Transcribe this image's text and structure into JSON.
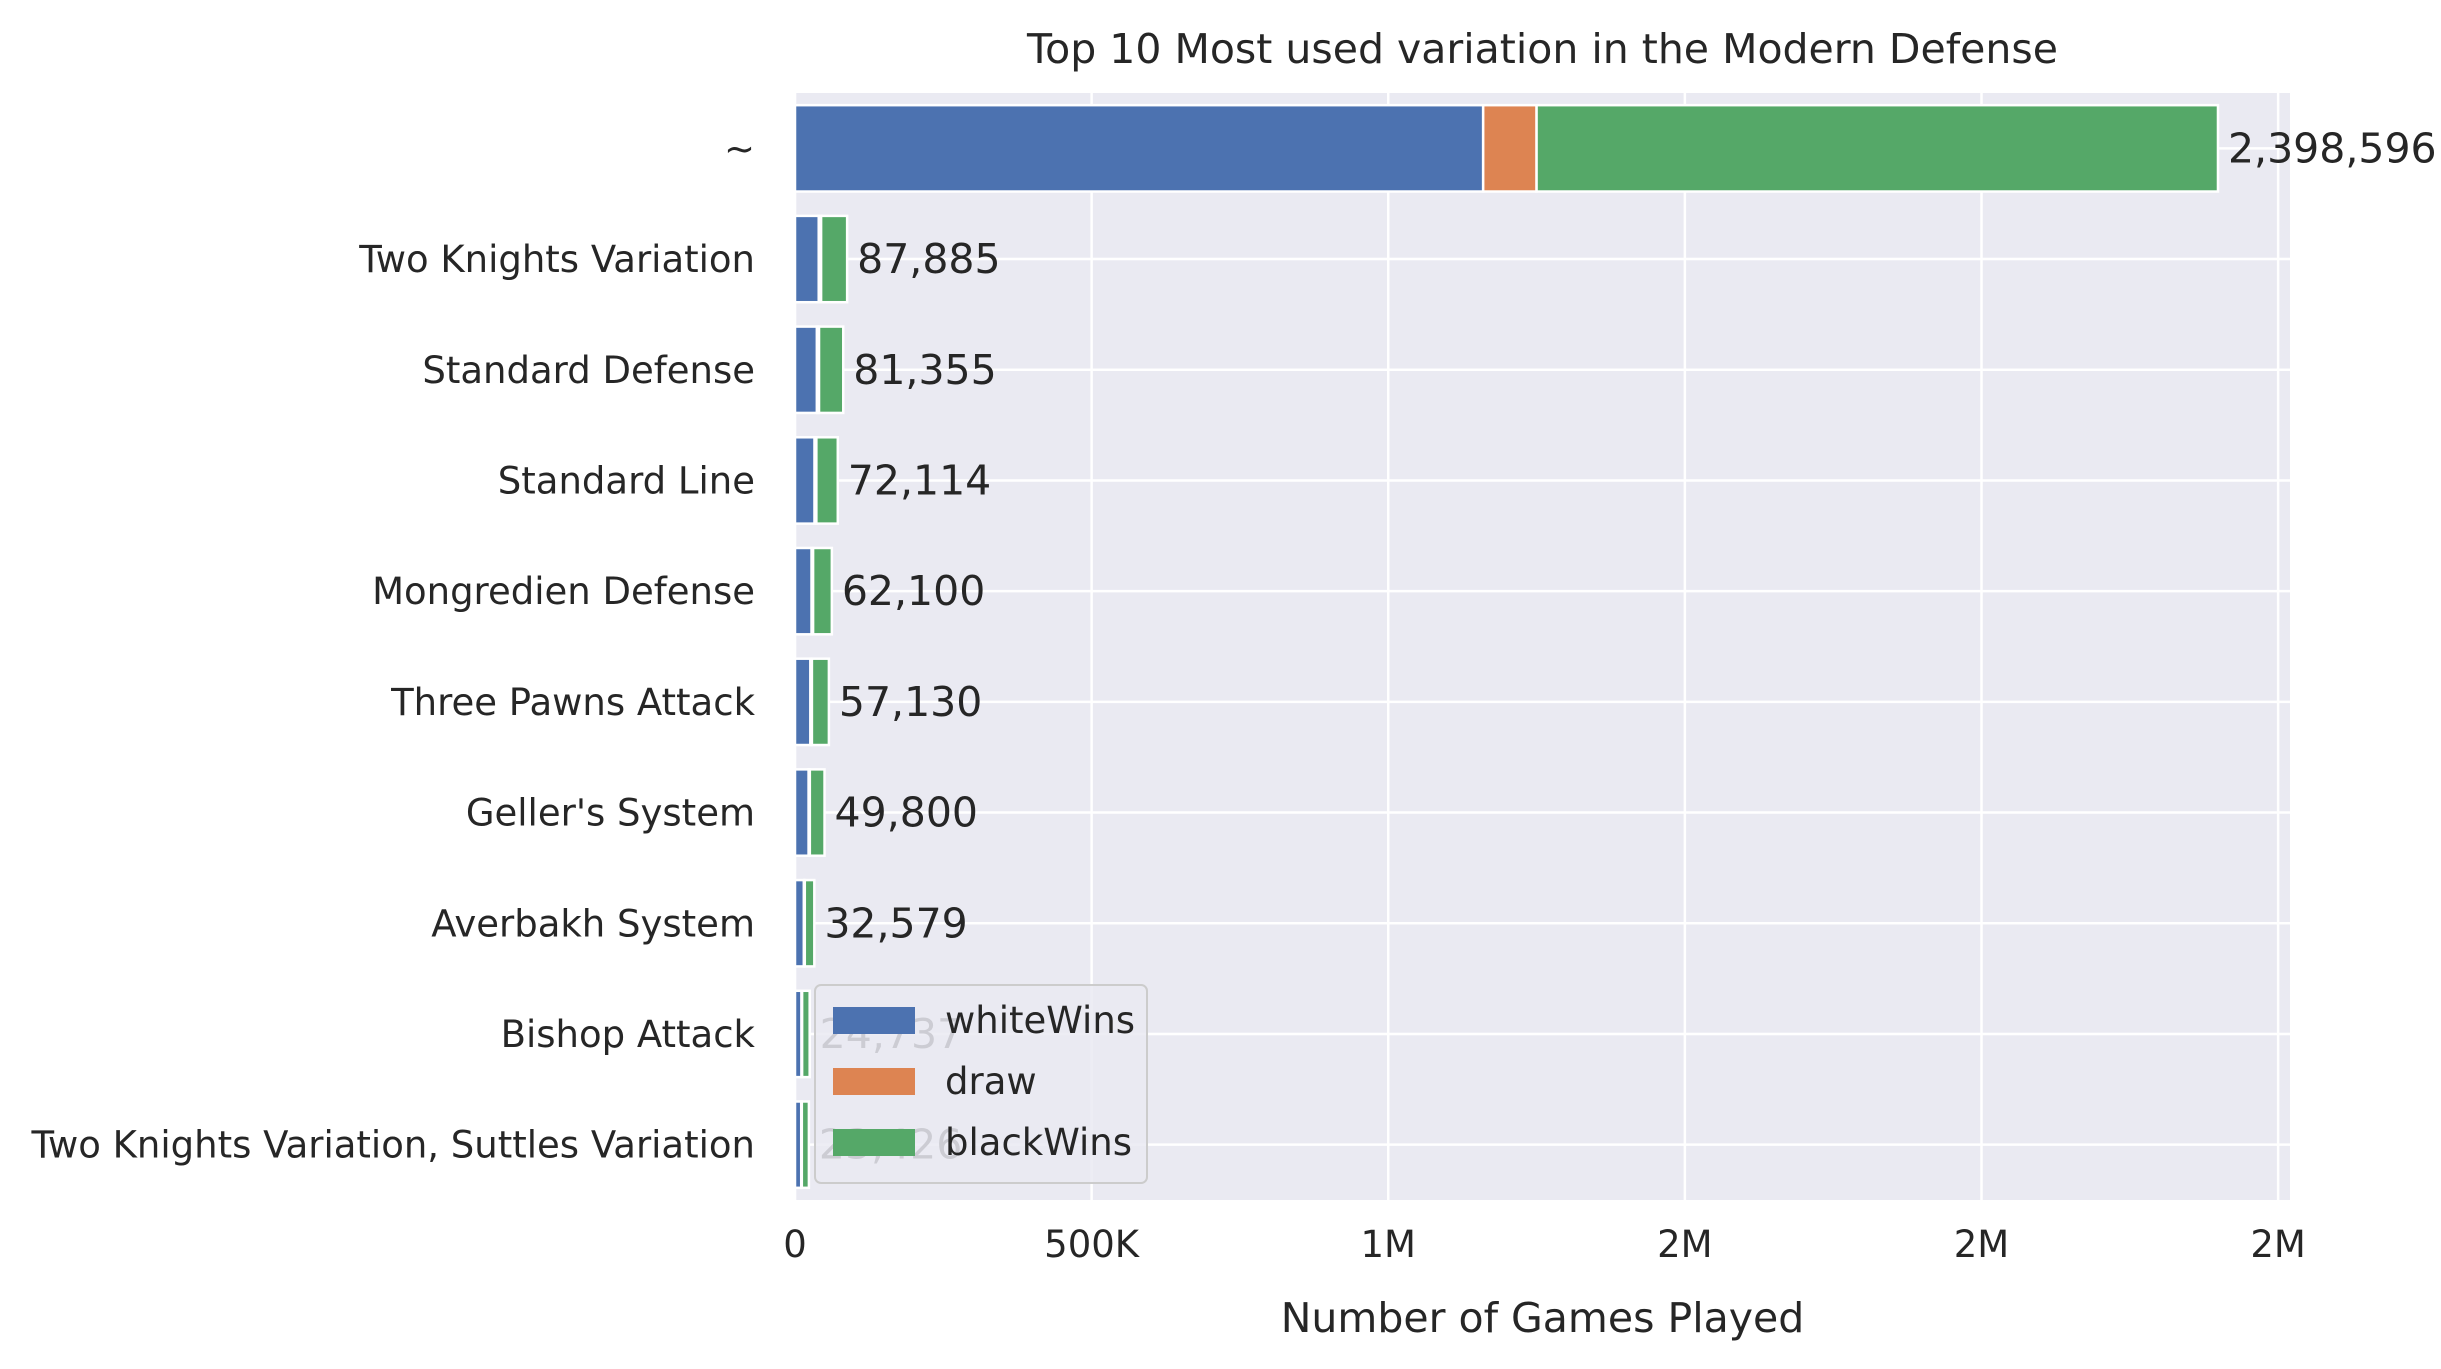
{
  "chart_data": {
    "type": "bar",
    "orientation": "horizontal",
    "stacked": true,
    "title": "Top 10 Most used variation in the Modern Defense",
    "xlabel": "Number of Games Played",
    "ylabel": "",
    "xlim": [
      0,
      2520000
    ],
    "x_ticks": [
      {
        "value": 0,
        "label": "0"
      },
      {
        "value": 500000,
        "label": "500K"
      },
      {
        "value": 1000000,
        "label": "1M"
      },
      {
        "value": 1500000,
        "label": "2M"
      },
      {
        "value": 2000000,
        "label": "2M"
      },
      {
        "value": 2500000,
        "label": "2M"
      }
    ],
    "grid": true,
    "legend_position": "lower-left",
    "categories": [
      "~",
      "Two Knights Variation",
      "Standard Defense",
      "Standard Line",
      "Mongredien Defense",
      "Three Pawns Attack",
      "Geller's System",
      "Averbakh System",
      "Bishop Attack",
      "Two Knights Variation, Suttles Variation"
    ],
    "series": [
      {
        "name": "whiteWins",
        "color": "#4c72b0",
        "values": [
          1160000,
          40000,
          37000,
          33000,
          28000,
          26000,
          23000,
          15000,
          11000,
          10500
        ]
      },
      {
        "name": "draw",
        "color": "#dd8452",
        "values": [
          90000,
          4000,
          3500,
          3000,
          2500,
          2500,
          2000,
          1500,
          1000,
          1000
        ]
      },
      {
        "name": "blackWins",
        "color": "#55a868",
        "values": [
          1148596,
          43885,
          40855,
          36114,
          31600,
          28630,
          24800,
          16079,
          12737,
          11926
        ]
      }
    ],
    "totals": [
      2398596,
      87885,
      81355,
      72114,
      62100,
      57130,
      49800,
      32579,
      24737,
      23426
    ],
    "total_labels": [
      "2,398,596",
      "87,885",
      "81,355",
      "72,114",
      "62,100",
      "57,130",
      "49,800",
      "32,579",
      "24,737",
      "23,426"
    ]
  }
}
